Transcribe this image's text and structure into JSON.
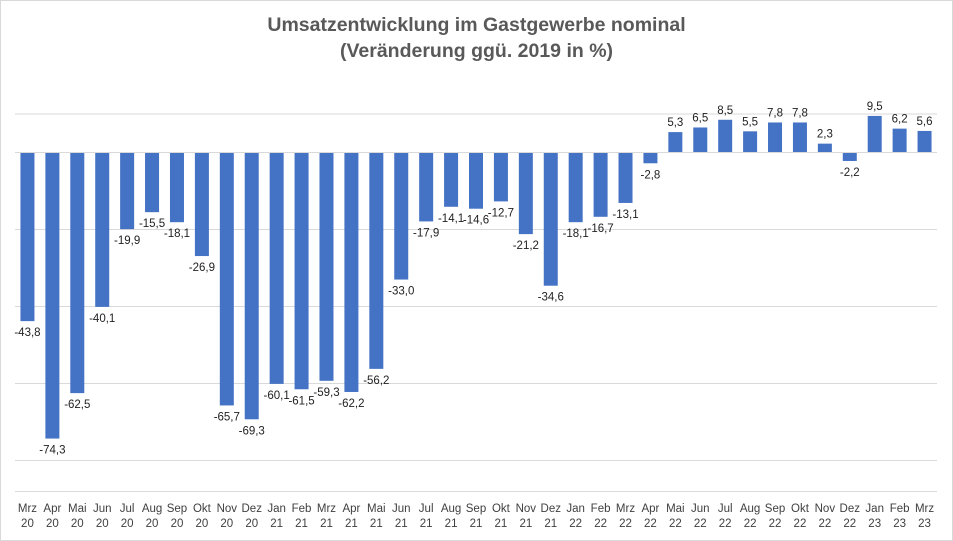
{
  "chart_data": {
    "type": "bar",
    "title": "Umsatzentwicklung im Gastgewerbe nominal",
    "subtitle": "(Veränderung ggü. 2019 in %)",
    "categories": [
      [
        "Mrz",
        "20"
      ],
      [
        "Apr",
        "20"
      ],
      [
        "Mai",
        "20"
      ],
      [
        "Jun",
        "20"
      ],
      [
        "Jul",
        "20"
      ],
      [
        "Aug",
        "20"
      ],
      [
        "Sep",
        "20"
      ],
      [
        "Okt",
        "20"
      ],
      [
        "Nov",
        "20"
      ],
      [
        "Dez",
        "20"
      ],
      [
        "Jan",
        "21"
      ],
      [
        "Feb",
        "21"
      ],
      [
        "Mrz",
        "21"
      ],
      [
        "Apr",
        "21"
      ],
      [
        "Mai",
        "21"
      ],
      [
        "Jun",
        "21"
      ],
      [
        "Jul",
        "21"
      ],
      [
        "Aug",
        "21"
      ],
      [
        "Sep",
        "21"
      ],
      [
        "Okt",
        "21"
      ],
      [
        "Nov",
        "21"
      ],
      [
        "Dez",
        "21"
      ],
      [
        "Jan",
        "22"
      ],
      [
        "Feb",
        "22"
      ],
      [
        "Mrz",
        "22"
      ],
      [
        "Apr",
        "22"
      ],
      [
        "Mai",
        "22"
      ],
      [
        "Jun",
        "22"
      ],
      [
        "Jul",
        "22"
      ],
      [
        "Aug",
        "22"
      ],
      [
        "Sep",
        "22"
      ],
      [
        "Okt",
        "22"
      ],
      [
        "Nov",
        "22"
      ],
      [
        "Dez",
        "22"
      ],
      [
        "Jan",
        "23"
      ],
      [
        "Feb",
        "23"
      ],
      [
        "Mrz",
        "23"
      ]
    ],
    "values": [
      -43.8,
      -74.3,
      -62.5,
      -40.1,
      -19.9,
      -15.5,
      -18.1,
      -26.9,
      -65.7,
      -69.3,
      -60.1,
      -61.5,
      -59.3,
      -62.2,
      -56.2,
      -33.0,
      -17.9,
      -14.1,
      -14.6,
      -12.7,
      -21.2,
      -34.6,
      -18.1,
      -16.7,
      -13.1,
      -2.8,
      5.3,
      6.5,
      8.5,
      5.5,
      7.8,
      7.8,
      2.3,
      -2.2,
      9.5,
      6.2,
      5.6
    ],
    "data_labels": [
      "-43,8",
      "-74,3",
      "-62,5",
      "-40,1",
      "-19,9",
      "-15,5",
      "-18,1",
      "-26,9",
      "-65,7",
      "-69,3",
      "-60,1",
      "-61,5",
      "-59,3",
      "-62,2",
      "-56,2",
      "-33,0",
      "-17,9",
      "-14,1",
      "-14,6",
      "-12,7",
      "-21,2",
      "-34,6",
      "-18,1",
      "-16,7",
      "-13,1",
      "-2,8",
      "5,3",
      "6,5",
      "8,5",
      "5,5",
      "7,8",
      "7,8",
      "2,3",
      "-2,2",
      "9,5",
      "6,2",
      "5,6"
    ],
    "ylim": [
      -90,
      20
    ],
    "gridlines": [
      -80,
      -60,
      -40,
      -20,
      0,
      10
    ],
    "grid": true,
    "legend": "none",
    "bar_color": "#4472c4"
  }
}
